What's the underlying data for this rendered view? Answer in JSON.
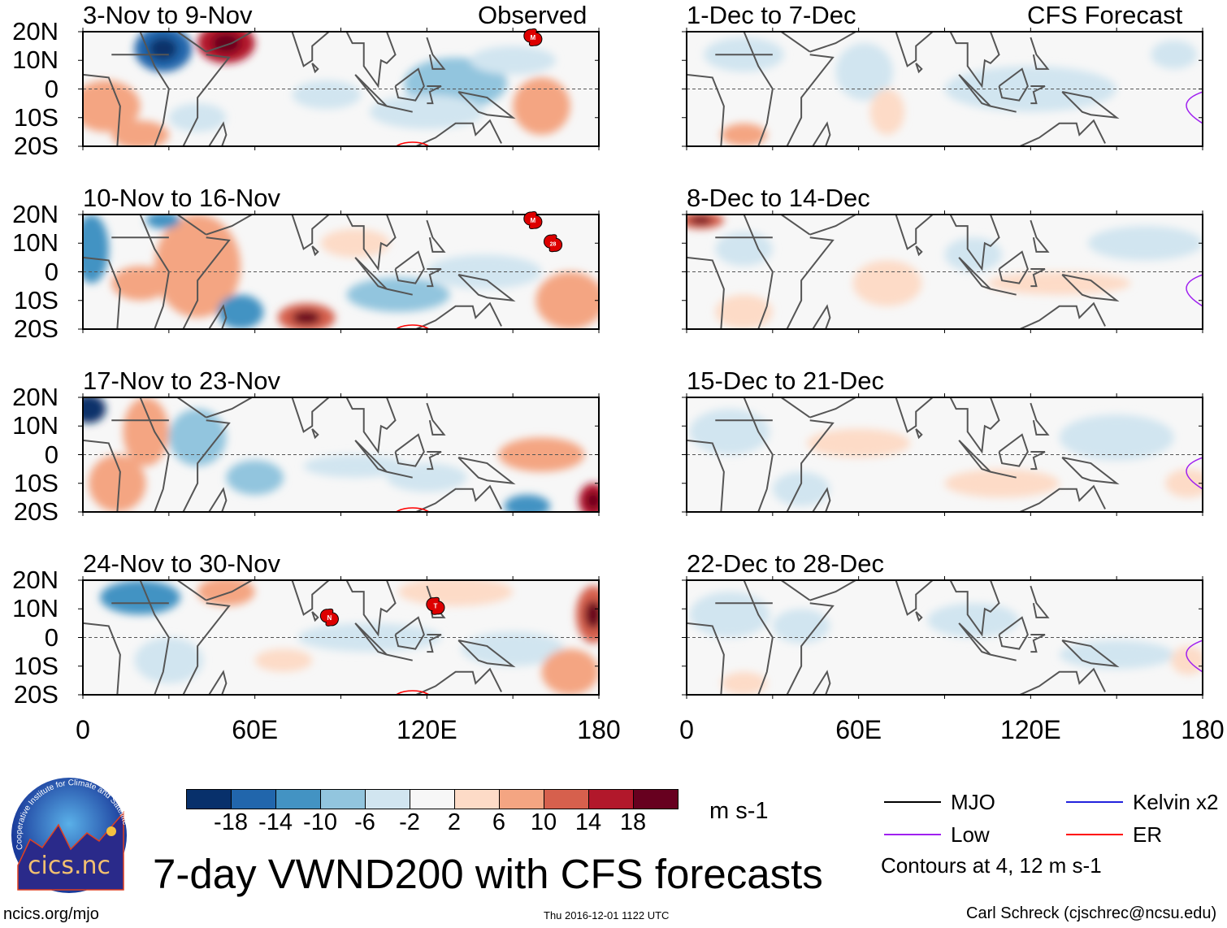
{
  "headers": {
    "observed": "Observed",
    "forecast": "CFS Forecast"
  },
  "panels": {
    "observed": [
      "3-Nov to 9-Nov",
      "10-Nov to 16-Nov",
      "17-Nov to 23-Nov",
      "24-Nov to 30-Nov"
    ],
    "forecast": [
      "1-Dec to 7-Dec",
      "8-Dec to 14-Dec",
      "15-Dec to 21-Dec",
      "22-Dec to 28-Dec"
    ]
  },
  "y_ticks": [
    "20N",
    "10N",
    "0",
    "10S",
    "20S"
  ],
  "x_ticks": [
    "0",
    "60E",
    "120E",
    "180"
  ],
  "storms": [
    {
      "panel": 0,
      "label": "M",
      "lon": 157,
      "lat": 18
    },
    {
      "panel": 1,
      "label": "M",
      "lon": 157,
      "lat": 18
    },
    {
      "panel": 1,
      "label": "28",
      "lon": 164,
      "lat": 10
    },
    {
      "panel": 3,
      "label": "N",
      "lon": 86,
      "lat": 7
    },
    {
      "panel": 3,
      "label": "T",
      "lon": 123,
      "lat": 11
    }
  ],
  "colorbar": {
    "colors": [
      "#08306b",
      "#2166ac",
      "#4393c3",
      "#92c5de",
      "#d1e5f0",
      "#f7f7f7",
      "#fddbc7",
      "#f4a582",
      "#d6604d",
      "#b2182b",
      "#67001f"
    ],
    "labels": [
      "-18",
      "-14",
      "-10",
      "-6",
      "-2",
      "2",
      "6",
      "10",
      "14",
      "18"
    ],
    "units": "m s-1"
  },
  "legend": {
    "items": [
      {
        "label": "MJO",
        "color": "#000000"
      },
      {
        "label": "Kelvin x2",
        "color": "#2222dd"
      },
      {
        "label": "Low",
        "color": "#a020f0"
      },
      {
        "label": "ER",
        "color": "#ff0000"
      }
    ],
    "note": "Contours at 4, 12 m s-1"
  },
  "logo": {
    "text": "cics.nc",
    "ring": "Cooperative Institute for Climate and Satellites"
  },
  "title": "7-day VWND200 with CFS forecasts",
  "footer": {
    "url": "ncics.org/mjo",
    "timestamp": "Thu 2016-12-01 1122 UTC",
    "credit": "Carl Schreck (cjschrec@ncsu.edu)"
  }
}
